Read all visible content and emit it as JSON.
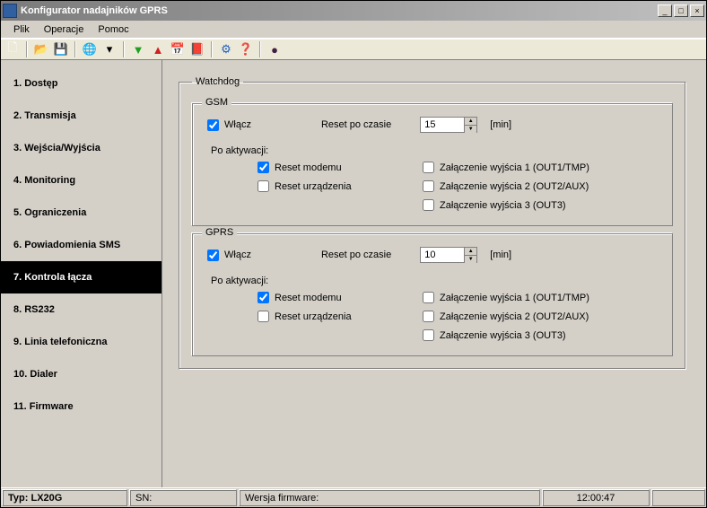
{
  "window": {
    "title": "Konfigurator nadajników GPRS",
    "min_icon": "_",
    "max_icon": "□",
    "close_icon": "×"
  },
  "menu": {
    "items": [
      "Plik",
      "Operacje",
      "Pomoc"
    ]
  },
  "toolbar": {
    "icons": [
      {
        "glyph": "🗋",
        "name": "new-icon",
        "color": "#ffffff"
      },
      {
        "sep": true
      },
      {
        "glyph": "📂",
        "name": "open-icon",
        "color": "#f0b030"
      },
      {
        "glyph": "💾",
        "name": "save-icon",
        "color": "#4060c0"
      },
      {
        "sep": true
      },
      {
        "glyph": "🌐",
        "name": "globe-icon",
        "color": "#2060c0"
      },
      {
        "glyph": "▾",
        "name": "globe-drop-icon",
        "color": "#000"
      },
      {
        "sep": true
      },
      {
        "glyph": "▼",
        "name": "download-icon",
        "color": "#20a020"
      },
      {
        "glyph": "▲",
        "name": "upload-icon",
        "color": "#d02020"
      },
      {
        "glyph": "📅",
        "name": "calendar-icon",
        "color": "#808000"
      },
      {
        "glyph": "📕",
        "name": "book-icon",
        "color": "#804000"
      },
      {
        "sep": true
      },
      {
        "glyph": "⚙",
        "name": "settings-icon",
        "color": "#2060c0"
      },
      {
        "glyph": "❓",
        "name": "help-icon",
        "color": "#2060c0"
      },
      {
        "sep": true
      },
      {
        "glyph": "●",
        "name": "record-icon",
        "color": "#402040"
      }
    ]
  },
  "sidebar": {
    "items": [
      {
        "label": "1. Dostęp"
      },
      {
        "label": "2. Transmisja"
      },
      {
        "label": "3. Wejścia/Wyjścia"
      },
      {
        "label": "4. Monitoring"
      },
      {
        "label": "5. Ograniczenia"
      },
      {
        "label": "6. Powiadomienia SMS"
      },
      {
        "label": "7. Kontrola łącza",
        "active": true
      },
      {
        "label": "8. RS232"
      },
      {
        "label": "9. Linia telefoniczna"
      },
      {
        "label": "10. Dialer"
      },
      {
        "label": "11. Firmware"
      }
    ]
  },
  "watchdog": {
    "legend": "Watchdog",
    "gsm": {
      "legend": "GSM",
      "enable_label": "Włącz",
      "enable_checked": true,
      "reset_after_label": "Reset po czasie",
      "reset_value": "15",
      "unit": "[min]",
      "after_activation_label": "Po aktywacji:",
      "left": [
        {
          "label": "Reset modemu",
          "checked": true
        },
        {
          "label": "Reset urządzenia",
          "checked": false
        }
      ],
      "right": [
        {
          "label": "Załączenie wyjścia 1 (OUT1/TMP)",
          "checked": false
        },
        {
          "label": "Załączenie wyjścia 2 (OUT2/AUX)",
          "checked": false
        },
        {
          "label": "Załączenie wyjścia 3 (OUT3)",
          "checked": false
        }
      ]
    },
    "gprs": {
      "legend": "GPRS",
      "enable_label": "Włącz",
      "enable_checked": true,
      "reset_after_label": "Reset po czasie",
      "reset_value": "10",
      "unit": "[min]",
      "after_activation_label": "Po aktywacji:",
      "left": [
        {
          "label": "Reset modemu",
          "checked": true
        },
        {
          "label": "Reset urządzenia",
          "checked": false
        }
      ],
      "right": [
        {
          "label": "Załączenie wyjścia 1 (OUT1/TMP)",
          "checked": false
        },
        {
          "label": "Załączenie wyjścia 2 (OUT2/AUX)",
          "checked": false
        },
        {
          "label": "Załączenie wyjścia 3 (OUT3)",
          "checked": false
        }
      ]
    }
  },
  "status": {
    "type_label": "Typ:",
    "type_value": "LX20G",
    "sn_label": "SN:",
    "fw_label": "Wersja firmware:",
    "time": "12:00:47"
  },
  "colors": {
    "window_bg": "#d4d0c8",
    "toolbar_bg": "#ece9d8",
    "active_nav_bg": "#000000",
    "active_nav_fg": "#ffffff",
    "titlebar_start": "#7b7b7b",
    "titlebar_end": "#c0c0c0"
  }
}
